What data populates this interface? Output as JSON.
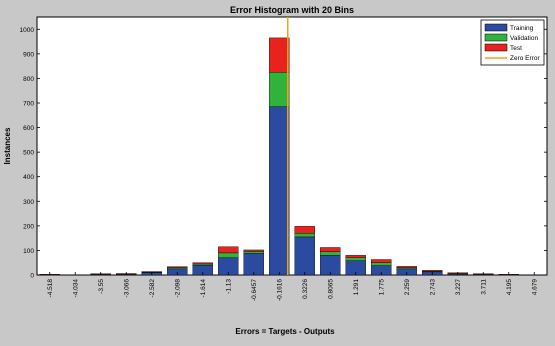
{
  "chart_data": {
    "type": "bar",
    "stacked": true,
    "title": "Error Histogram with 20 Bins",
    "xlabel": "Errors = Targets - Outputs",
    "ylabel": "Instances",
    "ylim": [
      0,
      1050
    ],
    "yticks": [
      0,
      100,
      200,
      300,
      400,
      500,
      600,
      700,
      800,
      900,
      1000
    ],
    "categories": [
      "-4.518",
      "-4.034",
      "-3.55",
      "-3.066",
      "-2.582",
      "-2.098",
      "-1.614",
      "-1.13",
      "-0.6457",
      "-0.1616",
      "0.3226",
      "0.8065",
      "1.291",
      "1.775",
      "2.259",
      "2.743",
      "3.227",
      "3.711",
      "4.195",
      "4.679"
    ],
    "series": [
      {
        "name": "Training",
        "color": "#2b4ba0",
        "values": [
          2,
          0,
          3,
          4,
          10,
          25,
          40,
          70,
          88,
          685,
          155,
          80,
          58,
          38,
          25,
          13,
          5,
          3,
          2,
          1
        ]
      },
      {
        "name": "Validation",
        "color": "#2fb33a",
        "values": [
          0,
          0,
          1,
          1,
          2,
          5,
          5,
          20,
          8,
          140,
          15,
          15,
          12,
          12,
          5,
          2,
          1,
          1,
          0,
          0
        ]
      },
      {
        "name": "Test",
        "color": "#e8231d",
        "values": [
          1,
          0,
          1,
          1,
          2,
          4,
          5,
          25,
          6,
          140,
          28,
          17,
          10,
          13,
          5,
          4,
          3,
          1,
          1,
          0
        ]
      }
    ],
    "zero_error": {
      "label": "Zero Error",
      "x": 0,
      "color": "#f0a21c"
    },
    "legend": "top-right",
    "grid": false
  }
}
